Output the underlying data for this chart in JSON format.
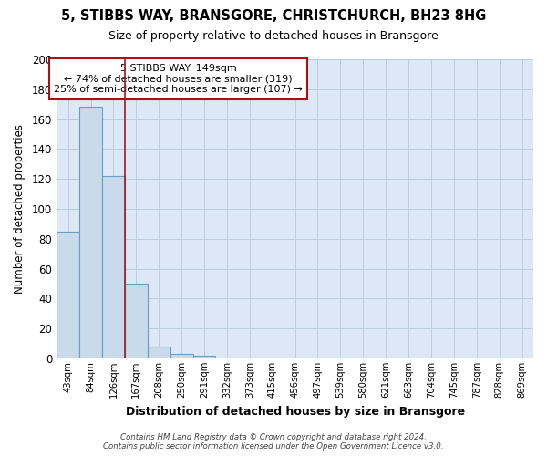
{
  "title": "5, STIBBS WAY, BRANSGORE, CHRISTCHURCH, BH23 8HG",
  "subtitle": "Size of property relative to detached houses in Bransgore",
  "xlabel": "Distribution of detached houses by size in Bransgore",
  "ylabel": "Number of detached properties",
  "bin_labels": [
    "43sqm",
    "84sqm",
    "126sqm",
    "167sqm",
    "208sqm",
    "250sqm",
    "291sqm",
    "332sqm",
    "373sqm",
    "415sqm",
    "456sqm",
    "497sqm",
    "539sqm",
    "580sqm",
    "621sqm",
    "663sqm",
    "704sqm",
    "745sqm",
    "787sqm",
    "828sqm",
    "869sqm"
  ],
  "bar_heights": [
    85,
    168,
    122,
    50,
    8,
    3,
    2,
    0,
    0,
    0,
    0,
    0,
    0,
    0,
    0,
    0,
    0,
    0,
    0,
    0,
    0
  ],
  "bar_color": "#c9daea",
  "bar_edge_color": "#6a9dbf",
  "bar_linewidth": 0.8,
  "vline_x": 2.5,
  "vline_color": "#9b1c1c",
  "annotation_text": "5 STIBBS WAY: 149sqm\n← 74% of detached houses are smaller (319)\n25% of semi-detached houses are larger (107) →",
  "annotation_box_color": "#ffffff",
  "annotation_box_edge": "#aa1111",
  "ylim": [
    0,
    200
  ],
  "yticks": [
    0,
    20,
    40,
    60,
    80,
    100,
    120,
    140,
    160,
    180,
    200
  ],
  "grid_color": "#b8cfe0",
  "bg_color": "#dce8f5",
  "footer_line1": "Contains HM Land Registry data © Crown copyright and database right 2024.",
  "footer_line2": "Contains public sector information licensed under the Open Government Licence v3.0."
}
